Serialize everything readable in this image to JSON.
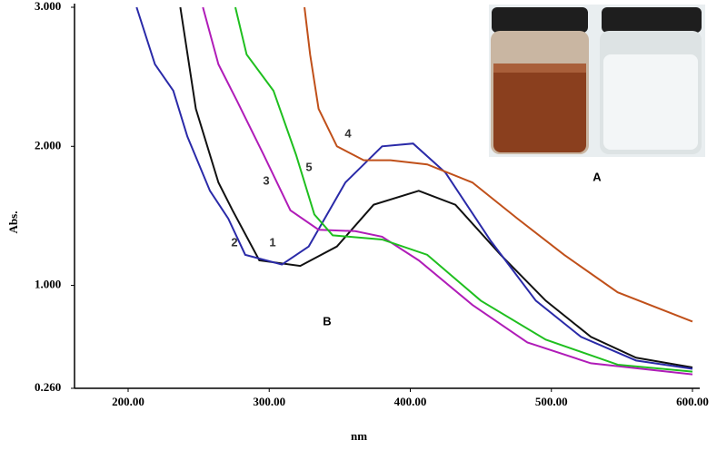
{
  "chart_data": {
    "type": "line",
    "x_label": "nm",
    "y_label": "Abs.",
    "xlim": [
      162,
      600
    ],
    "ylim": [
      0.26,
      3.0
    ],
    "xticks": [
      {
        "value": 200,
        "label": "200.00"
      },
      {
        "value": 300,
        "label": "300.00"
      },
      {
        "value": 400,
        "label": "400.00"
      },
      {
        "value": 500,
        "label": "500.00"
      },
      {
        "value": 600,
        "label": "600.00"
      }
    ],
    "yticks": [
      {
        "value": 0.26,
        "label": "0.260"
      },
      {
        "value": 1,
        "label": "1.000"
      },
      {
        "value": 2,
        "label": "2.000"
      },
      {
        "value": 3,
        "label": "3.000"
      }
    ],
    "annotations": [
      "A",
      "B"
    ],
    "series": [
      {
        "name": "1",
        "color": "#111111",
        "x": [
          237,
          248,
          264,
          274,
          293,
          322,
          348,
          374,
          406,
          432,
          464,
          496,
          528,
          560,
          600
        ],
        "values": [
          3.0,
          2.27,
          1.74,
          1.54,
          1.18,
          1.14,
          1.28,
          1.58,
          1.68,
          1.58,
          1.22,
          0.89,
          0.63,
          0.48,
          0.41
        ]
      },
      {
        "name": "2",
        "color": "#2a2aa8",
        "x": [
          206,
          219,
          232,
          242,
          258,
          271,
          283,
          309,
          328,
          354,
          380,
          402,
          425,
          457,
          489,
          521,
          560,
          600
        ],
        "values": [
          3.0,
          2.59,
          2.4,
          2.07,
          1.68,
          1.48,
          1.22,
          1.15,
          1.28,
          1.74,
          2.0,
          2.02,
          1.81,
          1.32,
          0.89,
          0.63,
          0.46,
          0.4
        ]
      },
      {
        "name": "3",
        "color": "#b01cb8",
        "x": [
          253,
          264,
          277,
          296,
          315,
          335,
          361,
          380,
          406,
          444,
          483,
          528,
          600
        ],
        "values": [
          3.0,
          2.59,
          2.33,
          1.94,
          1.54,
          1.4,
          1.39,
          1.35,
          1.18,
          0.86,
          0.59,
          0.44,
          0.36
        ]
      },
      {
        "name": "4",
        "color": "#c0501a",
        "x": [
          325,
          329,
          335,
          348,
          367,
          386,
          412,
          444,
          476,
          509,
          547,
          600
        ],
        "values": [
          3.0,
          2.66,
          2.27,
          2.0,
          1.9,
          1.9,
          1.87,
          1.74,
          1.48,
          1.22,
          0.95,
          0.74
        ]
      },
      {
        "name": "5",
        "color": "#1fbf1f",
        "x": [
          276,
          284,
          303,
          319,
          332,
          345,
          380,
          412,
          450,
          496,
          547,
          600
        ],
        "values": [
          3.0,
          2.66,
          2.4,
          1.94,
          1.51,
          1.36,
          1.33,
          1.22,
          0.89,
          0.61,
          0.43,
          0.38
        ]
      }
    ]
  }
}
